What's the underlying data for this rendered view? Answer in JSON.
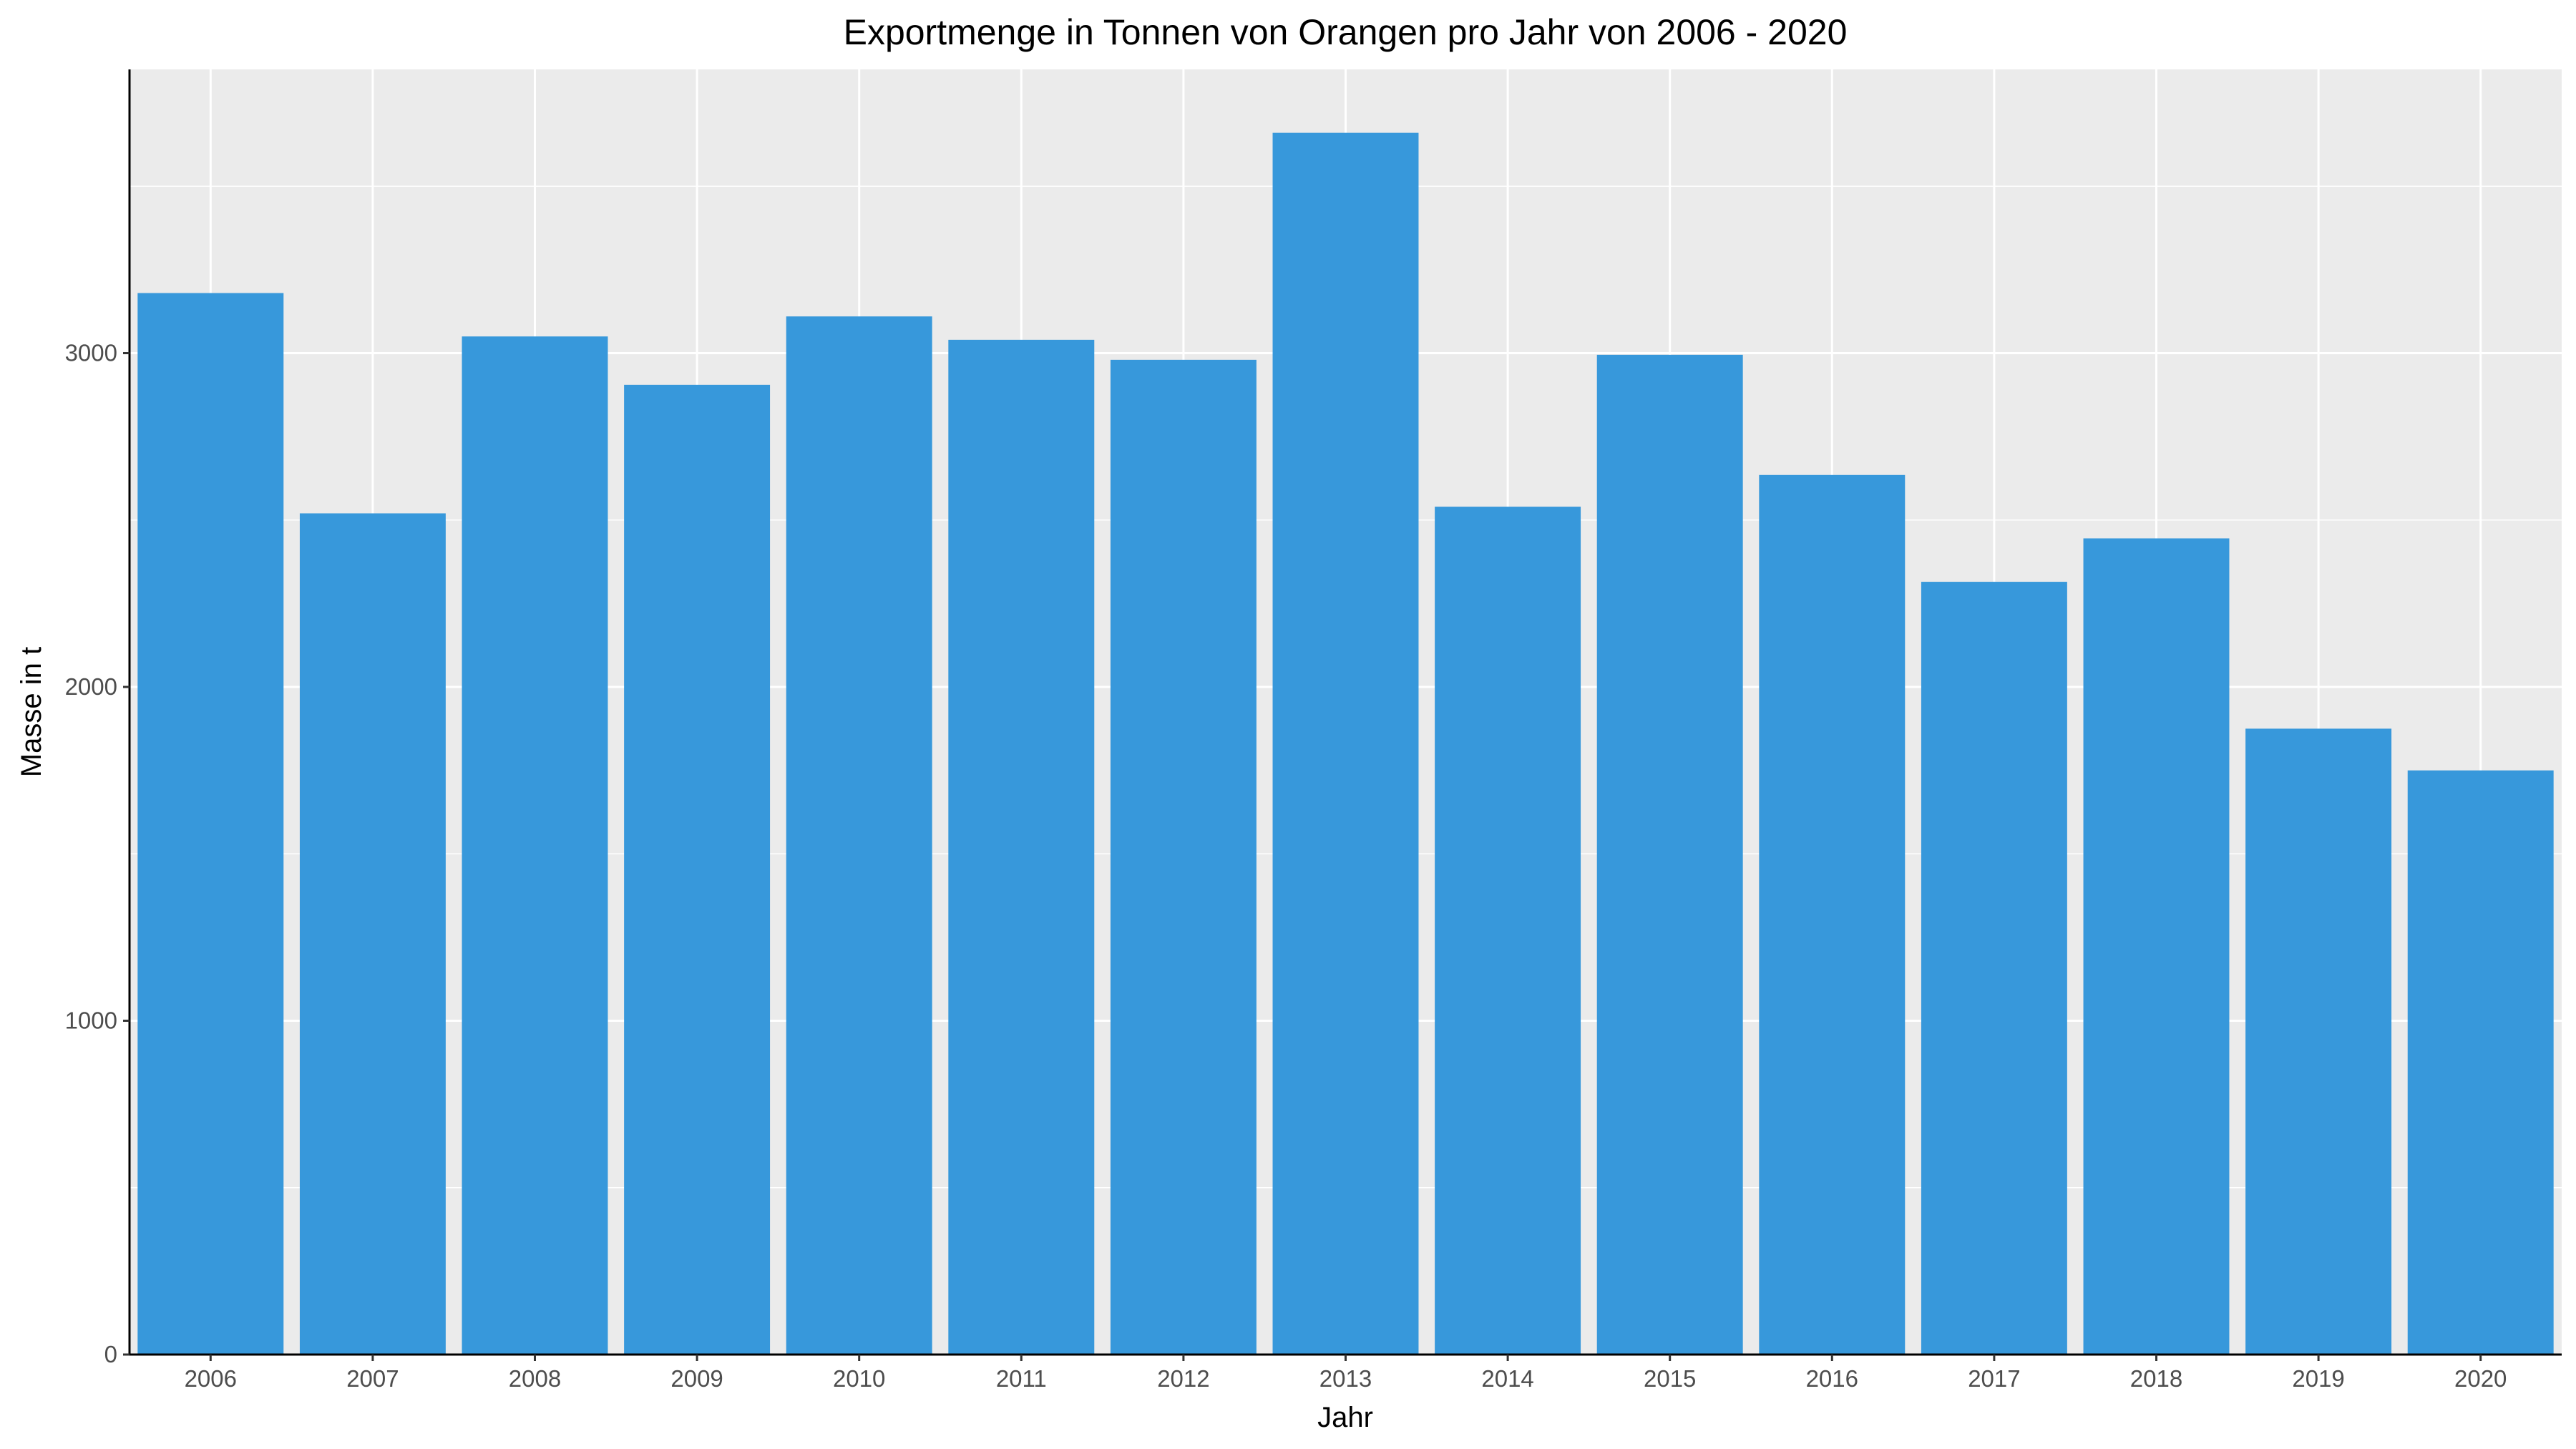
{
  "chart_data": {
    "type": "bar",
    "title": "Exportmenge in Tonnen von Orangen pro Jahr von 2006 - 2020",
    "xlabel": "Jahr",
    "ylabel": "Masse in t",
    "categories": [
      "2006",
      "2007",
      "2008",
      "2009",
      "2010",
      "2011",
      "2012",
      "2013",
      "2014",
      "2015",
      "2016",
      "2017",
      "2018",
      "2019",
      "2020"
    ],
    "values": [
      3180,
      2520,
      3050,
      2905,
      3110,
      3040,
      2980,
      3660,
      2540,
      2995,
      2635,
      2315,
      2445,
      1875,
      1750
    ],
    "ylim": [
      0,
      3850
    ],
    "yticks": [
      0,
      1000,
      2000,
      3000
    ],
    "ytick_labels": [
      "0",
      "1000",
      "2000",
      "3000"
    ],
    "grid": true,
    "colors": {
      "bar": "#3798db",
      "panel_background": "#ebebeb",
      "grid": "#ffffff",
      "axis_line": "#000000"
    }
  }
}
